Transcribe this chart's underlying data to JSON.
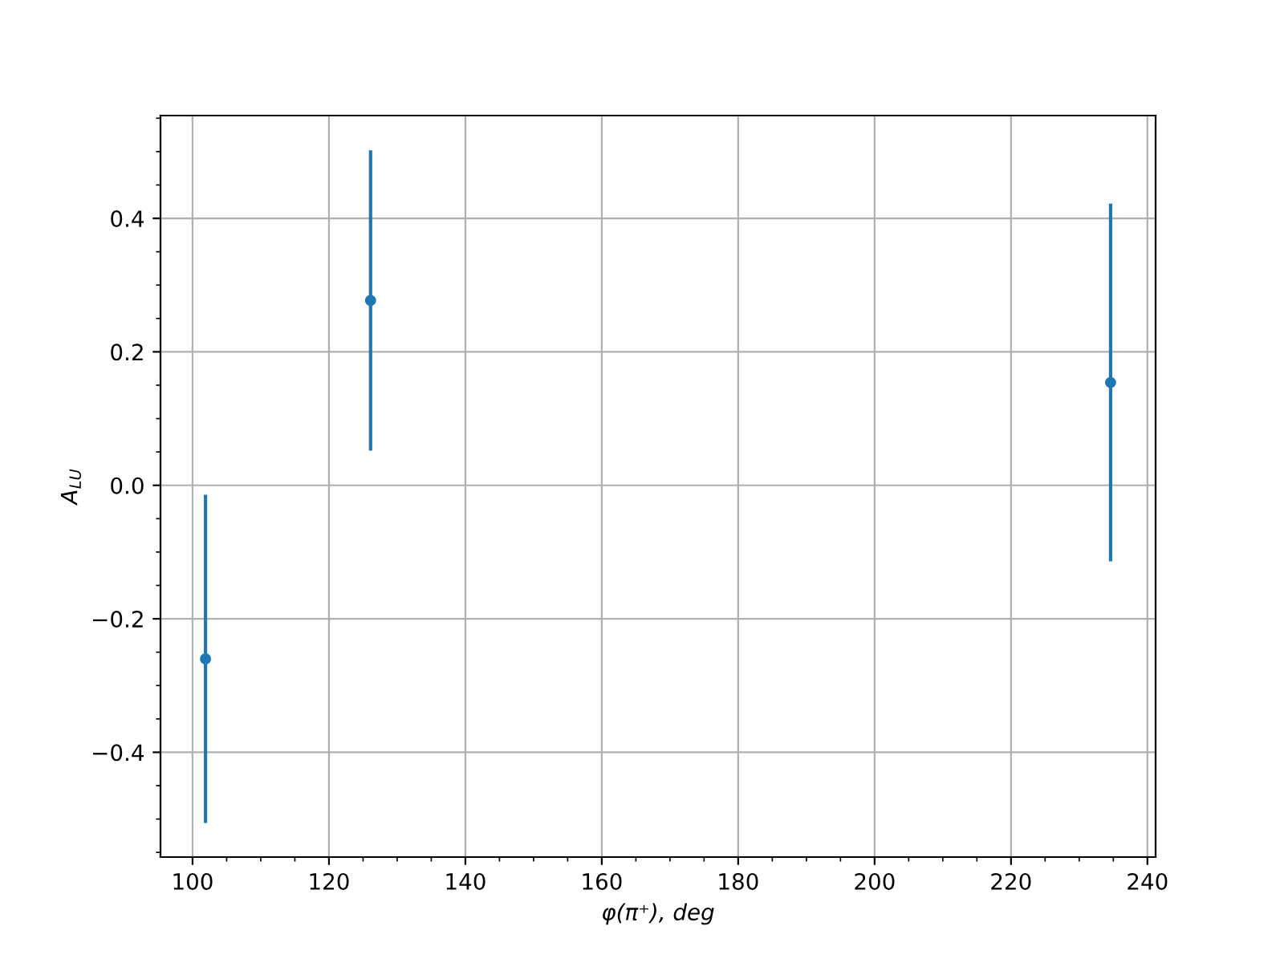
{
  "chart_data": {
    "type": "scatter",
    "xlabel": "φ(π⁺), deg",
    "ylabel": "A$_{LU}$",
    "x": [
      101.9,
      126.1,
      234.6
    ],
    "series": [
      {
        "color": "#1f77b4",
        "values": [
          -0.26,
          0.277,
          0.154
        ],
        "errors": [
          0.246,
          0.225,
          0.268
        ]
      }
    ],
    "xlim": [
      95.3,
      241.2
    ],
    "ylim": [
      -0.557,
      0.554
    ],
    "xticks": [
      100,
      120,
      140,
      160,
      180,
      200,
      220,
      240
    ],
    "yticks": [
      -0.4,
      -0.2,
      {
        "value": 0,
        "label": "0.0"
      },
      0.2,
      0.4
    ],
    "grid": true,
    "marker": "circle"
  }
}
